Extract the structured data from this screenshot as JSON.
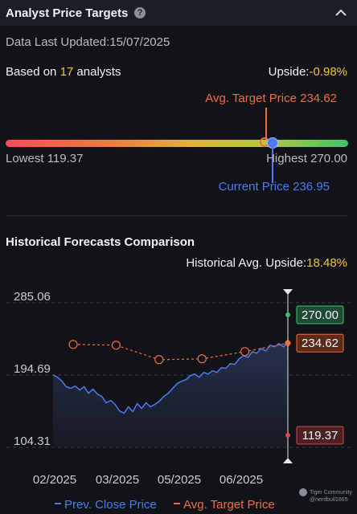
{
  "header": {
    "title": "Analyst Price Targets",
    "help_icon": "question-circle-icon",
    "collapse_icon": "chevron-up-icon"
  },
  "updated": "Data Last Updated:15/07/2025",
  "based_on": {
    "prefix": "Based on ",
    "count": "17",
    "suffix": " analysts"
  },
  "upside": {
    "label": "Upside:",
    "value": "-0.98%"
  },
  "range": {
    "avg_target_label": "Avg. Target Price 234.62",
    "lowest_label": "Lowest 119.37",
    "highest_label": "Highest 270.00",
    "current_label": "Current Price 236.95",
    "lowest": 119.37,
    "highest": 270.0,
    "avg_target": 234.62,
    "current": 236.95
  },
  "historical": {
    "title": "Historical Forecasts Comparison",
    "avg_upside_label": "Historical Avg. Upside:",
    "avg_upside_value": "18.48%"
  },
  "chart_data": {
    "type": "line",
    "y_ticks": [
      "285.06",
      "194.69",
      "104.31"
    ],
    "ylim": [
      104.31,
      285.06
    ],
    "x_ticks": [
      "02/2025",
      "03/2025",
      "05/2025",
      "06/2025"
    ],
    "series": [
      {
        "name": "Prev. Close Price",
        "color": "#4a7cf0",
        "values": [
          195,
          192,
          187,
          180,
          178,
          181,
          176,
          180,
          172,
          177,
          171,
          168,
          160,
          163,
          158,
          150,
          147,
          155,
          149,
          159,
          153,
          160,
          155,
          158,
          162,
          168,
          172,
          178,
          184,
          187,
          189,
          194,
          196,
          192,
          198,
          196,
          200,
          198,
          204,
          203,
          209,
          208,
          215,
          219,
          217,
          224,
          222,
          228,
          225,
          232,
          230,
          234,
          230,
          237
        ]
      },
      {
        "name": "Avg. Target Price",
        "color": "#f26d3d",
        "values": [
          233,
          232,
          214,
          215,
          224,
          234.62
        ]
      }
    ],
    "price_tags": [
      {
        "label": "270.00",
        "value": 270.0,
        "bg": "#1f4a33",
        "border": "#3fc46a"
      },
      {
        "label": "234.62",
        "value": 234.62,
        "bg": "#5a2a1c",
        "border": "#f26d3d"
      },
      {
        "label": "119.37",
        "value": 119.37,
        "bg": "#4a2222",
        "border": "#d04a4a"
      }
    ]
  },
  "watermark": {
    "line1": "Tiger Community",
    "line2": "@nerdbull1665"
  }
}
